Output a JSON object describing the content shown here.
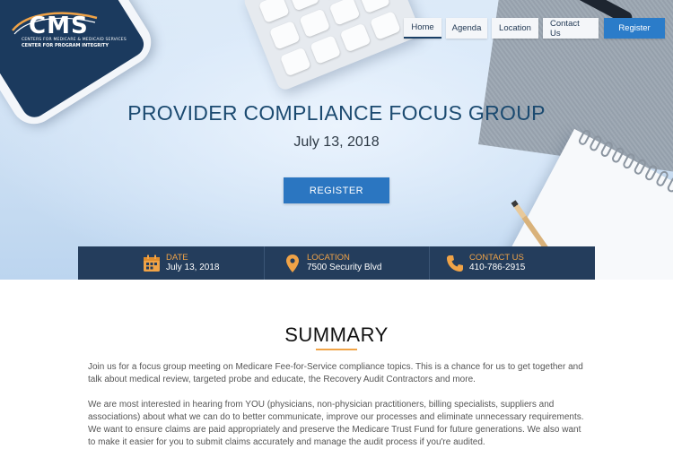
{
  "logo": {
    "text": "CMS",
    "line1": "CENTERS FOR MEDICARE & MEDICAID SERVICES",
    "line2": "CENTER FOR PROGRAM INTEGRITY"
  },
  "nav": {
    "items": [
      {
        "label": "Home",
        "active": true
      },
      {
        "label": "Agenda"
      },
      {
        "label": "Location"
      },
      {
        "label": "Contact Us"
      }
    ],
    "register": "Register"
  },
  "hero": {
    "title": "PROVIDER COMPLIANCE FOCUS GROUP",
    "date": "July 13, 2018",
    "register_label": "REGISTER"
  },
  "info": [
    {
      "label": "DATE",
      "value": "July 13, 2018",
      "icon": "calendar-icon"
    },
    {
      "label": "LOCATION",
      "value": "7500 Security Blvd",
      "icon": "map-pin-icon"
    },
    {
      "label": "CONTACT US",
      "value": "410-786-2915",
      "icon": "phone-icon"
    }
  ],
  "summary": {
    "title": "SUMMARY",
    "paragraphs": [
      "Join us for a focus group meeting on Medicare Fee-for-Service compliance topics. This is a chance for us to get together and talk about medical review, targeted probe and educate, the Recovery Audit Contractors and more.",
      "We are most interested in hearing from YOU (physicians, non-physician practitioners, billing specialists, suppliers and associations) about what we can do to better communicate, improve our processes and eliminate unnecessary requirements. We want to ensure claims are paid appropriately and preserve the Medicare Trust Fund for future generations. We also want to make it easier for you to submit claims accurately and manage the audit process if you're audited."
    ]
  },
  "colors": {
    "navy": "#243d5c",
    "accent_orange": "#f0a347",
    "button_blue": "#2b76c1",
    "title_blue": "#1b4a70"
  }
}
